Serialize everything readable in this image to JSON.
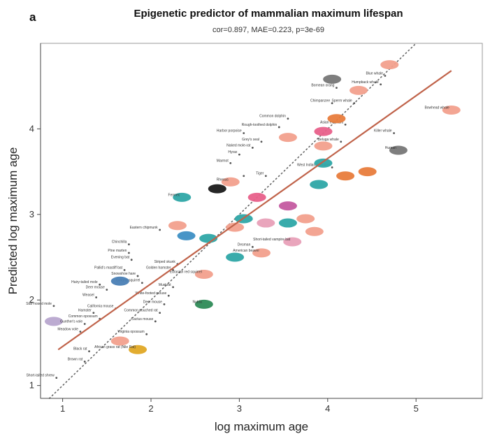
{
  "chart_data": {
    "type": "scatter",
    "panel_letter": "a",
    "title": "Epigenetic predictor of mammalian maximum lifespan",
    "subtitle": "cor=0.897, MAE=0.223, p=3e-69",
    "xlabel": "log maximum age",
    "ylabel": "Predicted log maximum age",
    "xlim": [
      0.75,
      5.75
    ],
    "ylim": [
      0.85,
      5.0
    ],
    "xticks": [
      1,
      2,
      3,
      4,
      5
    ],
    "yticks": [
      1,
      2,
      3,
      4
    ],
    "grid": false,
    "fit_line": {
      "color": "#c0634a",
      "x": [
        0.95,
        5.4
      ],
      "y": [
        1.42,
        4.68
      ]
    },
    "identity_line": {
      "style": "dotted",
      "color": "#666666"
    },
    "points": [
      {
        "x": 0.93,
        "y": 1.09,
        "label": "Short-tailed shrew",
        "color": "#555555",
        "shape": "dot"
      },
      {
        "x": 0.9,
        "y": 1.75,
        "label": "",
        "color": "#b8a7cf",
        "shape": "blob"
      },
      {
        "x": 0.9,
        "y": 1.93,
        "label": "Star-nosed mole",
        "color": "#555555",
        "shape": "dot"
      },
      {
        "x": 1.25,
        "y": 1.28,
        "label": "Brown rat",
        "color": "#555555",
        "shape": "dot"
      },
      {
        "x": 1.3,
        "y": 1.4,
        "label": "Black rat",
        "color": "#555555",
        "shape": "dot"
      },
      {
        "x": 1.2,
        "y": 1.63,
        "label": "Meadow vole",
        "color": "#555555",
        "shape": "dot"
      },
      {
        "x": 1.25,
        "y": 1.72,
        "label": "Gunther's vole",
        "color": "#555555",
        "shape": "dot"
      },
      {
        "x": 1.42,
        "y": 1.78,
        "label": "Common opossum",
        "color": "#555555",
        "shape": "dot"
      },
      {
        "x": 1.35,
        "y": 1.85,
        "label": "Hamster",
        "color": "#555555",
        "shape": "dot"
      },
      {
        "x": 1.6,
        "y": 1.9,
        "label": "California mouse",
        "color": "#555555",
        "shape": "dot"
      },
      {
        "x": 1.38,
        "y": 2.03,
        "label": "Weasel",
        "color": "#555555",
        "shape": "dot"
      },
      {
        "x": 1.5,
        "y": 2.12,
        "label": "Deer mouse",
        "color": "#555555",
        "shape": "dot"
      },
      {
        "x": 1.42,
        "y": 2.18,
        "label": "Hairy-tailed mole",
        "color": "#555555",
        "shape": "dot"
      },
      {
        "x": 1.7,
        "y": 2.35,
        "label": "Pallid's mastiff bat",
        "color": "#555555",
        "shape": "dot"
      },
      {
        "x": 1.78,
        "y": 2.47,
        "label": "Evening bat",
        "color": "#555555",
        "shape": "dot"
      },
      {
        "x": 1.65,
        "y": 1.52,
        "label": "",
        "color": "#f2a08d",
        "shape": "blob"
      },
      {
        "x": 1.85,
        "y": 1.42,
        "label": "African grass rat (Nile Rat)",
        "color": "#e0a825",
        "shape": "blob"
      },
      {
        "x": 1.95,
        "y": 1.6,
        "label": "Virginia opossum",
        "color": "#555555",
        "shape": "dot"
      },
      {
        "x": 2.05,
        "y": 1.75,
        "label": "Cactus mouse",
        "color": "#555555",
        "shape": "dot"
      },
      {
        "x": 2.1,
        "y": 1.85,
        "label": "Common pouched rat",
        "color": "#555555",
        "shape": "dot"
      },
      {
        "x": 2.15,
        "y": 1.95,
        "label": "Deer mouse",
        "color": "#555555",
        "shape": "dot"
      },
      {
        "x": 2.2,
        "y": 2.05,
        "label": "White-footed mouse",
        "color": "#555555",
        "shape": "dot"
      },
      {
        "x": 2.25,
        "y": 2.15,
        "label": "Muskrat",
        "color": "#555555",
        "shape": "dot"
      },
      {
        "x": 1.9,
        "y": 2.2,
        "label": "Ground squirrel",
        "color": "#555555",
        "shape": "dot"
      },
      {
        "x": 1.85,
        "y": 2.28,
        "label": "Snowshoe hare",
        "color": "#555555",
        "shape": "dot"
      },
      {
        "x": 2.25,
        "y": 2.35,
        "label": "Golden hamster",
        "color": "#555555",
        "shape": "dot"
      },
      {
        "x": 2.3,
        "y": 2.42,
        "label": "Striped skunk",
        "color": "#555555",
        "shape": "dot"
      },
      {
        "x": 1.75,
        "y": 2.55,
        "label": "Pine marten",
        "color": "#555555",
        "shape": "dot"
      },
      {
        "x": 1.75,
        "y": 2.65,
        "label": "Chinchilla",
        "color": "#555555",
        "shape": "dot"
      },
      {
        "x": 1.65,
        "y": 2.22,
        "label": "",
        "color": "#4a7fb5",
        "shape": "blob"
      },
      {
        "x": 2.6,
        "y": 1.95,
        "label": "Nutria",
        "color": "#2e8b57",
        "shape": "blob"
      },
      {
        "x": 2.6,
        "y": 2.3,
        "label": "Eurasian red squirrel",
        "color": "#f2a08d",
        "shape": "blob"
      },
      {
        "x": 2.1,
        "y": 2.82,
        "label": "Eastern chipmunk",
        "color": "#555555",
        "shape": "dot"
      },
      {
        "x": 2.3,
        "y": 2.87,
        "label": "",
        "color": "#f2a08d",
        "shape": "blob"
      },
      {
        "x": 2.4,
        "y": 2.75,
        "label": "",
        "color": "#3d8fc4",
        "shape": "blob"
      },
      {
        "x": 2.65,
        "y": 2.72,
        "label": "",
        "color": "#2ea6a6",
        "shape": "blob"
      },
      {
        "x": 2.35,
        "y": 3.2,
        "label": "Fennec",
        "color": "#2ea6a6",
        "shape": "blob"
      },
      {
        "x": 2.75,
        "y": 3.3,
        "label": "",
        "color": "#1a1a1a",
        "shape": "blob"
      },
      {
        "x": 2.9,
        "y": 3.38,
        "label": "Rhesus",
        "color": "#f2a08d",
        "shape": "blob"
      },
      {
        "x": 3.05,
        "y": 3.45,
        "label": "",
        "color": "#555555",
        "shape": "dot"
      },
      {
        "x": 2.9,
        "y": 3.6,
        "label": "Marmot",
        "color": "#555555",
        "shape": "dot"
      },
      {
        "x": 3.0,
        "y": 3.7,
        "label": "Hyrax",
        "color": "#555555",
        "shape": "dot"
      },
      {
        "x": 3.15,
        "y": 3.78,
        "label": "Naked mole-rat",
        "color": "#555555",
        "shape": "dot"
      },
      {
        "x": 3.25,
        "y": 3.85,
        "label": "Grey's seal",
        "color": "#555555",
        "shape": "dot"
      },
      {
        "x": 3.05,
        "y": 3.95,
        "label": "Harbor porpoise",
        "color": "#555555",
        "shape": "dot"
      },
      {
        "x": 3.45,
        "y": 4.02,
        "label": "Rough-toothed dolphin",
        "color": "#555555",
        "shape": "dot"
      },
      {
        "x": 3.55,
        "y": 4.12,
        "label": "Common dolphin",
        "color": "#555555",
        "shape": "dot"
      },
      {
        "x": 3.55,
        "y": 3.9,
        "label": "",
        "color": "#f2a08d",
        "shape": "blob"
      },
      {
        "x": 3.3,
        "y": 3.45,
        "label": "Tiger",
        "color": "#555555",
        "shape": "dot"
      },
      {
        "x": 3.2,
        "y": 3.2,
        "label": "",
        "color": "#e8608a",
        "shape": "blob"
      },
      {
        "x": 2.95,
        "y": 2.85,
        "label": "",
        "color": "#f2a08d",
        "shape": "blob"
      },
      {
        "x": 3.05,
        "y": 2.95,
        "label": "",
        "color": "#2ea6a6",
        "shape": "blob"
      },
      {
        "x": 3.3,
        "y": 2.9,
        "label": "",
        "color": "#e8a0b8",
        "shape": "blob"
      },
      {
        "x": 3.55,
        "y": 2.9,
        "label": "",
        "color": "#2ea6a6",
        "shape": "blob"
      },
      {
        "x": 3.75,
        "y": 2.95,
        "label": "",
        "color": "#f2a08d",
        "shape": "blob"
      },
      {
        "x": 3.55,
        "y": 3.1,
        "label": "",
        "color": "#c45aa0",
        "shape": "blob"
      },
      {
        "x": 2.95,
        "y": 2.5,
        "label": "",
        "color": "#2ea6a6",
        "shape": "blob"
      },
      {
        "x": 3.15,
        "y": 2.62,
        "label": "Desman",
        "color": "#555555",
        "shape": "dot"
      },
      {
        "x": 3.25,
        "y": 2.55,
        "label": "American beaver",
        "color": "#f2a08d",
        "shape": "blob"
      },
      {
        "x": 3.6,
        "y": 2.68,
        "label": "Short-tailed vampire bat",
        "color": "#e8a0b8",
        "shape": "blob"
      },
      {
        "x": 3.85,
        "y": 2.8,
        "label": "",
        "color": "#f2a08d",
        "shape": "blob"
      },
      {
        "x": 3.9,
        "y": 3.35,
        "label": "",
        "color": "#2ea6a6",
        "shape": "blob"
      },
      {
        "x": 4.05,
        "y": 3.55,
        "label": "West Indian manatee",
        "color": "#555555",
        "shape": "dot"
      },
      {
        "x": 4.2,
        "y": 3.45,
        "label": "",
        "color": "#e87c3c",
        "shape": "blob"
      },
      {
        "x": 4.45,
        "y": 3.5,
        "label": "",
        "color": "#e87c3c",
        "shape": "blob"
      },
      {
        "x": 3.95,
        "y": 3.6,
        "label": "",
        "color": "#2ea6a6",
        "shape": "blob"
      },
      {
        "x": 3.95,
        "y": 3.8,
        "label": "",
        "color": "#f2a08d",
        "shape": "blob"
      },
      {
        "x": 4.15,
        "y": 3.85,
        "label": "Beluga whale",
        "color": "#555555",
        "shape": "dot"
      },
      {
        "x": 3.95,
        "y": 3.97,
        "label": "",
        "color": "#e8608a",
        "shape": "blob"
      },
      {
        "x": 4.2,
        "y": 4.05,
        "label": "Asian elephant",
        "color": "#555555",
        "shape": "dot"
      },
      {
        "x": 4.1,
        "y": 4.12,
        "label": "",
        "color": "#e87c3c",
        "shape": "blob"
      },
      {
        "x": 4.05,
        "y": 4.3,
        "label": "Chimpanzee",
        "color": "#555555",
        "shape": "dot"
      },
      {
        "x": 4.3,
        "y": 4.3,
        "label": "Sperm whale",
        "color": "#555555",
        "shape": "dot"
      },
      {
        "x": 4.1,
        "y": 4.48,
        "label": "Bornean orang",
        "color": "#555555",
        "shape": "dot"
      },
      {
        "x": 4.05,
        "y": 4.58,
        "label": "",
        "color": "#777777",
        "shape": "blob"
      },
      {
        "x": 4.35,
        "y": 4.45,
        "label": "",
        "color": "#f2a08d",
        "shape": "blob"
      },
      {
        "x": 4.6,
        "y": 4.52,
        "label": "Humpback whale",
        "color": "#555555",
        "shape": "dot"
      },
      {
        "x": 4.65,
        "y": 4.62,
        "label": "Blue whale",
        "color": "#555555",
        "shape": "dot"
      },
      {
        "x": 4.7,
        "y": 4.75,
        "label": "",
        "color": "#f2a08d",
        "shape": "blob"
      },
      {
        "x": 4.75,
        "y": 3.95,
        "label": "Killer whale",
        "color": "#555555",
        "shape": "dot"
      },
      {
        "x": 4.8,
        "y": 3.75,
        "label": "Human",
        "color": "#777777",
        "shape": "blob"
      },
      {
        "x": 5.4,
        "y": 4.22,
        "label": "Bowhead whale",
        "color": "#f2a08d",
        "shape": "blob"
      }
    ]
  }
}
